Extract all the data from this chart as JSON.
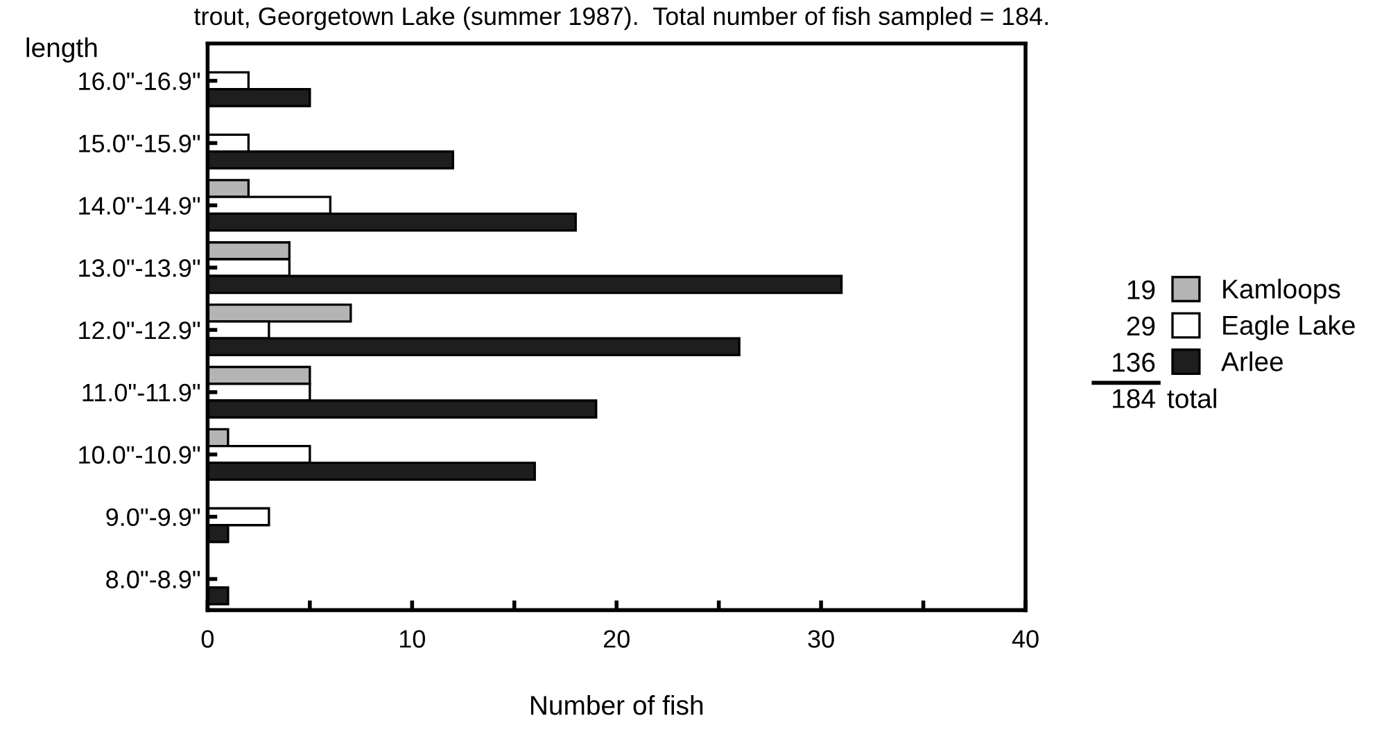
{
  "chart_data": {
    "type": "bar",
    "orientation": "horizontal",
    "title": "trout, Georgetown Lake (summer 1987).  Total number of fish sampled = 184.",
    "ylabel": "length",
    "xlabel": "Number of fish",
    "categories": [
      "16.0\"-16.9\"",
      "15.0\"-15.9\"",
      "14.0\"-14.9\"",
      "13.0\"-13.9\"",
      "12.0\"-12.9\"",
      "11.0\"-11.9\"",
      "10.0\"-10.9\"",
      "9.0\"-9.9\"",
      "8.0\"-8.9\""
    ],
    "series": [
      {
        "name": "Kamloops",
        "color": "#b4b4b4",
        "values": [
          0,
          0,
          2,
          4,
          7,
          5,
          1,
          0,
          0
        ]
      },
      {
        "name": "Eagle Lake",
        "color": "#ffffff",
        "values": [
          2,
          2,
          6,
          4,
          3,
          5,
          5,
          3,
          0
        ]
      },
      {
        "name": "Arlee",
        "color": "#1e1e1e",
        "values": [
          5,
          12,
          18,
          31,
          26,
          19,
          16,
          1,
          1
        ]
      }
    ],
    "xlim": [
      0,
      40
    ],
    "xticks": [
      0,
      {
        "value": 5,
        "label": null
      },
      10,
      {
        "value": 15,
        "label": null
      },
      20,
      {
        "value": 25,
        "label": null
      },
      30,
      {
        "value": 35,
        "label": null
      },
      40
    ],
    "legend": "right",
    "grid": false,
    "annotations": [
      "19",
      "29",
      "136",
      "184 total"
    ]
  }
}
